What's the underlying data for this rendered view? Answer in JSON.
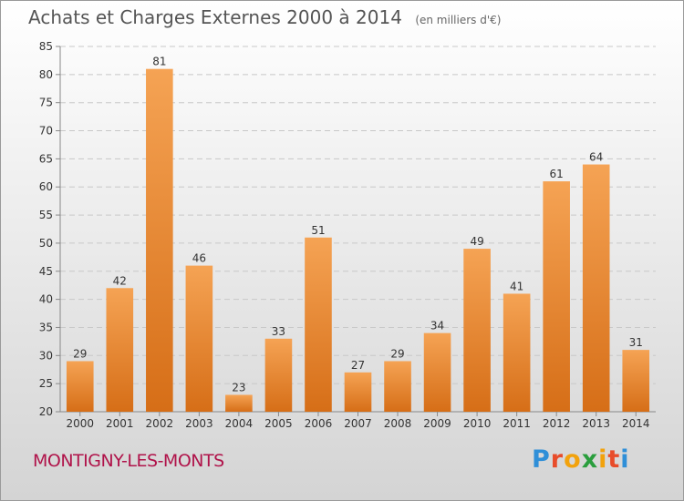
{
  "header": {
    "title": "Achats et Charges Externes 2000 à 2014",
    "subtitle": "(en milliers d'€)"
  },
  "footer": {
    "commune": "MONTIGNY-LES-MONTS",
    "logo_letters": [
      "P",
      "r",
      "o",
      "x",
      "i",
      "t",
      "i"
    ],
    "logo_colors": [
      "#2f8fd8",
      "#e84c2a",
      "#f2a20c",
      "#2a9e3d",
      "#f2a20c",
      "#e84c2a",
      "#2f8fd8"
    ]
  },
  "chart_data": {
    "type": "bar",
    "categories": [
      "2000",
      "2001",
      "2002",
      "2003",
      "2004",
      "2005",
      "2006",
      "2007",
      "2008",
      "2009",
      "2010",
      "2011",
      "2012",
      "2013",
      "2014"
    ],
    "values": [
      29,
      42,
      81,
      46,
      23,
      33,
      51,
      27,
      29,
      34,
      49,
      41,
      61,
      64,
      31
    ],
    "ylim": [
      20,
      85
    ],
    "yticks": [
      20,
      25,
      30,
      35,
      40,
      45,
      50,
      55,
      60,
      65,
      70,
      75,
      80,
      85
    ],
    "grid": true,
    "bar_color_top": "#f5a354",
    "bar_color_bottom": "#d66e17"
  }
}
